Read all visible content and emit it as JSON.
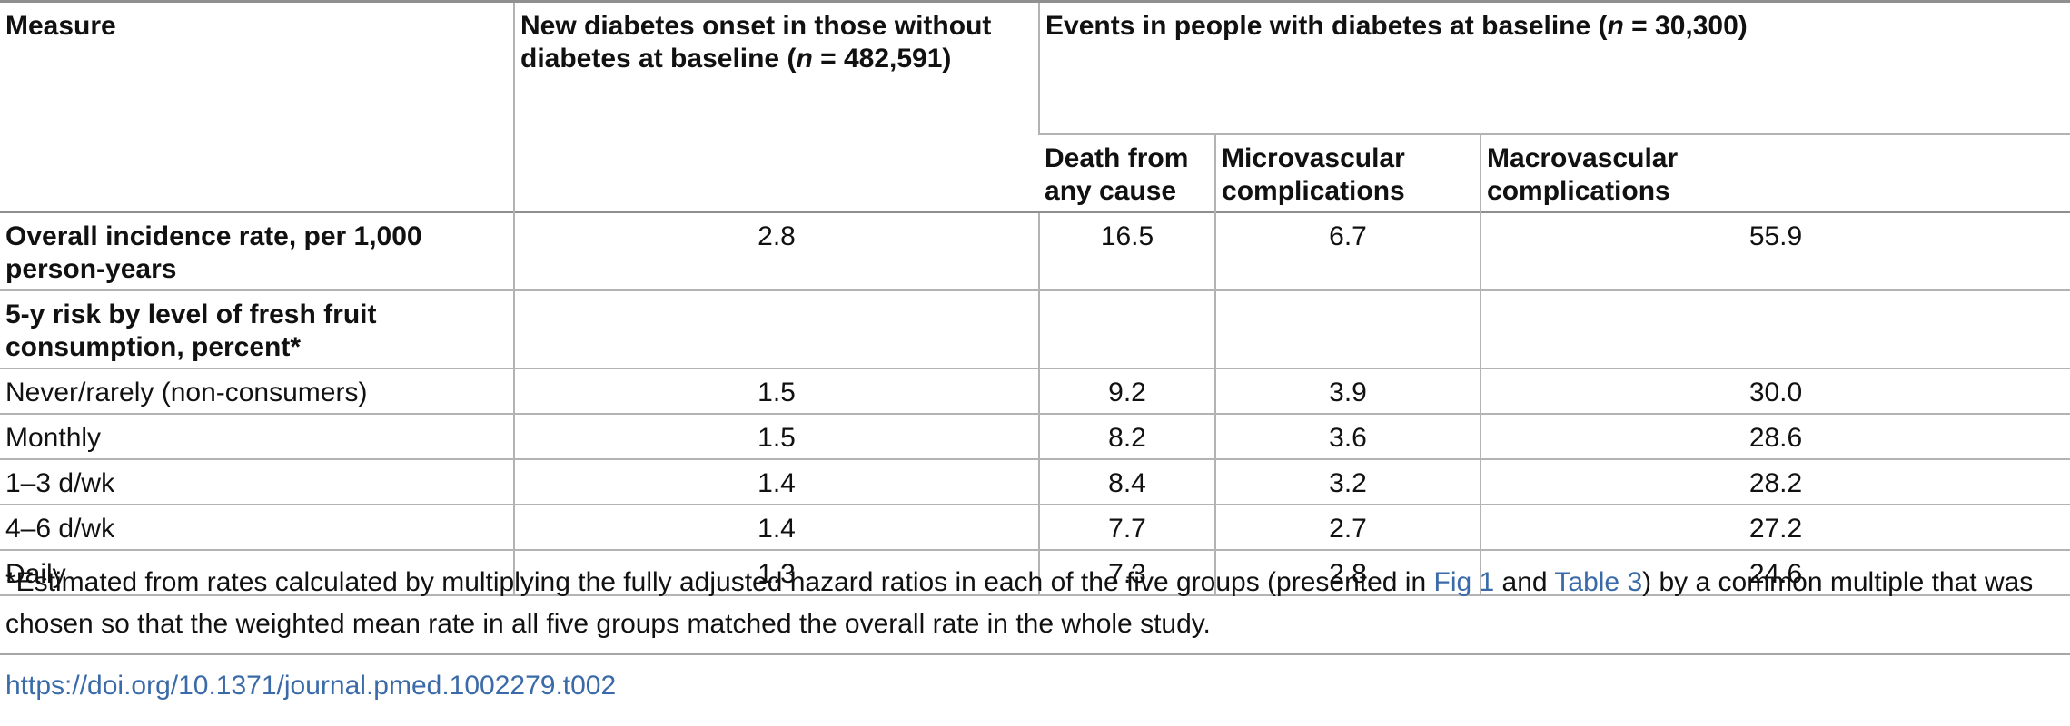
{
  "table": {
    "header": {
      "measure": "Measure",
      "new_onset_a": "New diabetes onset in those without diabetes at baseline (",
      "new_onset_n": "n",
      "new_onset_b": " = 482,591)",
      "events_a": "Events in people with diabetes at baseline (",
      "events_n": "n",
      "events_b": " = 30,300)",
      "death": "Death from any cause",
      "micro": "Microvascular complications",
      "macro": "Macrovascular complications"
    },
    "rows": [
      {
        "label": "Overall incidence rate, per 1,000 person-years",
        "new_onset": "2.8",
        "death": "16.5",
        "micro": "6.7",
        "macro": "55.9"
      },
      {
        "label": "5-y risk by level of fresh fruit consumption, percent*",
        "new_onset": "",
        "death": "",
        "micro": "",
        "macro": ""
      },
      {
        "label": "Never/rarely (non-consumers)",
        "new_onset": "1.5",
        "death": "9.2",
        "micro": "3.9",
        "macro": "30.0"
      },
      {
        "label": "Monthly",
        "new_onset": "1.5",
        "death": "8.2",
        "micro": "3.6",
        "macro": "28.6"
      },
      {
        "label": "1–3 d/wk",
        "new_onset": "1.4",
        "death": "8.4",
        "micro": "3.2",
        "macro": "28.2"
      },
      {
        "label": "4–6 d/wk",
        "new_onset": "1.4",
        "death": "7.7",
        "micro": "2.7",
        "macro": "27.2"
      },
      {
        "label": "Daily",
        "new_onset": "1.3",
        "death": "7.3",
        "micro": "2.8",
        "macro": "24.6"
      }
    ]
  },
  "footnote": {
    "part1": "*Estimated from rates calculated by multiplying the fully adjusted hazard ratios in each of the five groups (presented in ",
    "link1": "Fig 1",
    "part2": " and ",
    "link2": "Table 3",
    "part3": ") by a common multiple that was chosen so that the weighted mean rate in all five groups matched the overall rate in the whole study."
  },
  "doi": "https://doi.org/10.1371/journal.pmed.1002279.t002"
}
